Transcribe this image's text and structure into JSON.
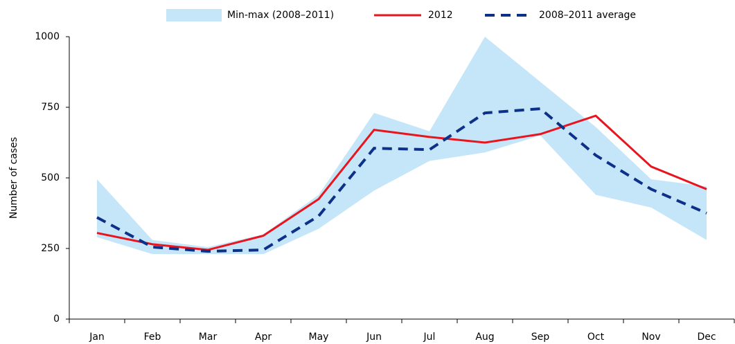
{
  "chart_data": {
    "type": "line",
    "y_label": "Number of cases",
    "categories": [
      "Jan",
      "Feb",
      "Mar",
      "Apr",
      "May",
      "Jun",
      "Jul",
      "Aug",
      "Sep",
      "Oct",
      "Nov",
      "Dec"
    ],
    "series": [
      {
        "name": "Min-max (2008–2011)",
        "color": "#c5e5f8",
        "max": [
          495,
          280,
          255,
          300,
          440,
          730,
          665,
          1000,
          840,
          680,
          495,
          470
        ],
        "min": [
          290,
          230,
          230,
          230,
          320,
          455,
          560,
          590,
          650,
          440,
          395,
          280
        ]
      },
      {
        "name": "2012",
        "color": "#e8141e",
        "values": [
          305,
          265,
          245,
          295,
          425,
          670,
          645,
          625,
          655,
          720,
          540,
          460
        ]
      },
      {
        "name": "2008–2011 average",
        "color": "#0d3088",
        "dashed": true,
        "values": [
          360,
          255,
          240,
          245,
          365,
          605,
          600,
          730,
          745,
          580,
          460,
          375
        ]
      }
    ],
    "ylim": [
      0,
      1000
    ],
    "yticks": [
      0,
      250,
      500,
      750,
      1000
    ],
    "grid": false
  }
}
